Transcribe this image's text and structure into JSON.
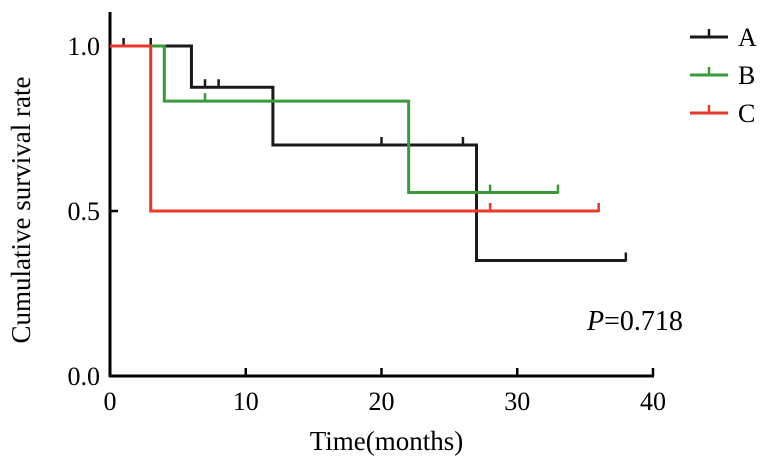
{
  "chart_data": {
    "type": "line",
    "step": true,
    "title": "",
    "xlabel": "Time(months)",
    "ylabel": "Cumulative survival rate",
    "xlim": [
      0,
      40
    ],
    "ylim": [
      0,
      1
    ],
    "xticks": [
      0,
      10,
      20,
      30,
      40
    ],
    "yticks": [
      0,
      0.5,
      1
    ],
    "xtick_labels": [
      "0",
      "10",
      "20",
      "30",
      "40"
    ],
    "ytick_labels": [
      "0.0",
      "0.5",
      "1.0"
    ],
    "grid": false,
    "legend_position": "top-right",
    "annotation": {
      "prefix": "P",
      "text": "=0.718"
    },
    "series": [
      {
        "name": "A",
        "color": "#1a1a1a",
        "x": [
          0,
          6,
          12,
          27,
          38
        ],
        "y": [
          1.0,
          0.875,
          0.7,
          0.35,
          0.35
        ],
        "censored": [
          [
            1,
            1.0
          ],
          [
            3,
            1.0
          ],
          [
            7,
            0.875
          ],
          [
            8,
            0.875
          ],
          [
            20,
            0.7
          ],
          [
            26,
            0.7
          ],
          [
            38,
            0.35
          ]
        ]
      },
      {
        "name": "B",
        "color": "#3a9a3a",
        "x": [
          0,
          4,
          22,
          33
        ],
        "y": [
          1.0,
          0.833,
          0.556,
          0.556
        ],
        "censored": [
          [
            7,
            0.833
          ],
          [
            28,
            0.556
          ],
          [
            33,
            0.556
          ]
        ]
      },
      {
        "name": "C",
        "color": "#e8392a",
        "x": [
          0,
          3,
          36
        ],
        "y": [
          1.0,
          0.5,
          0.5
        ],
        "censored": [
          [
            28,
            0.5
          ],
          [
            36,
            0.5
          ]
        ]
      }
    ]
  }
}
